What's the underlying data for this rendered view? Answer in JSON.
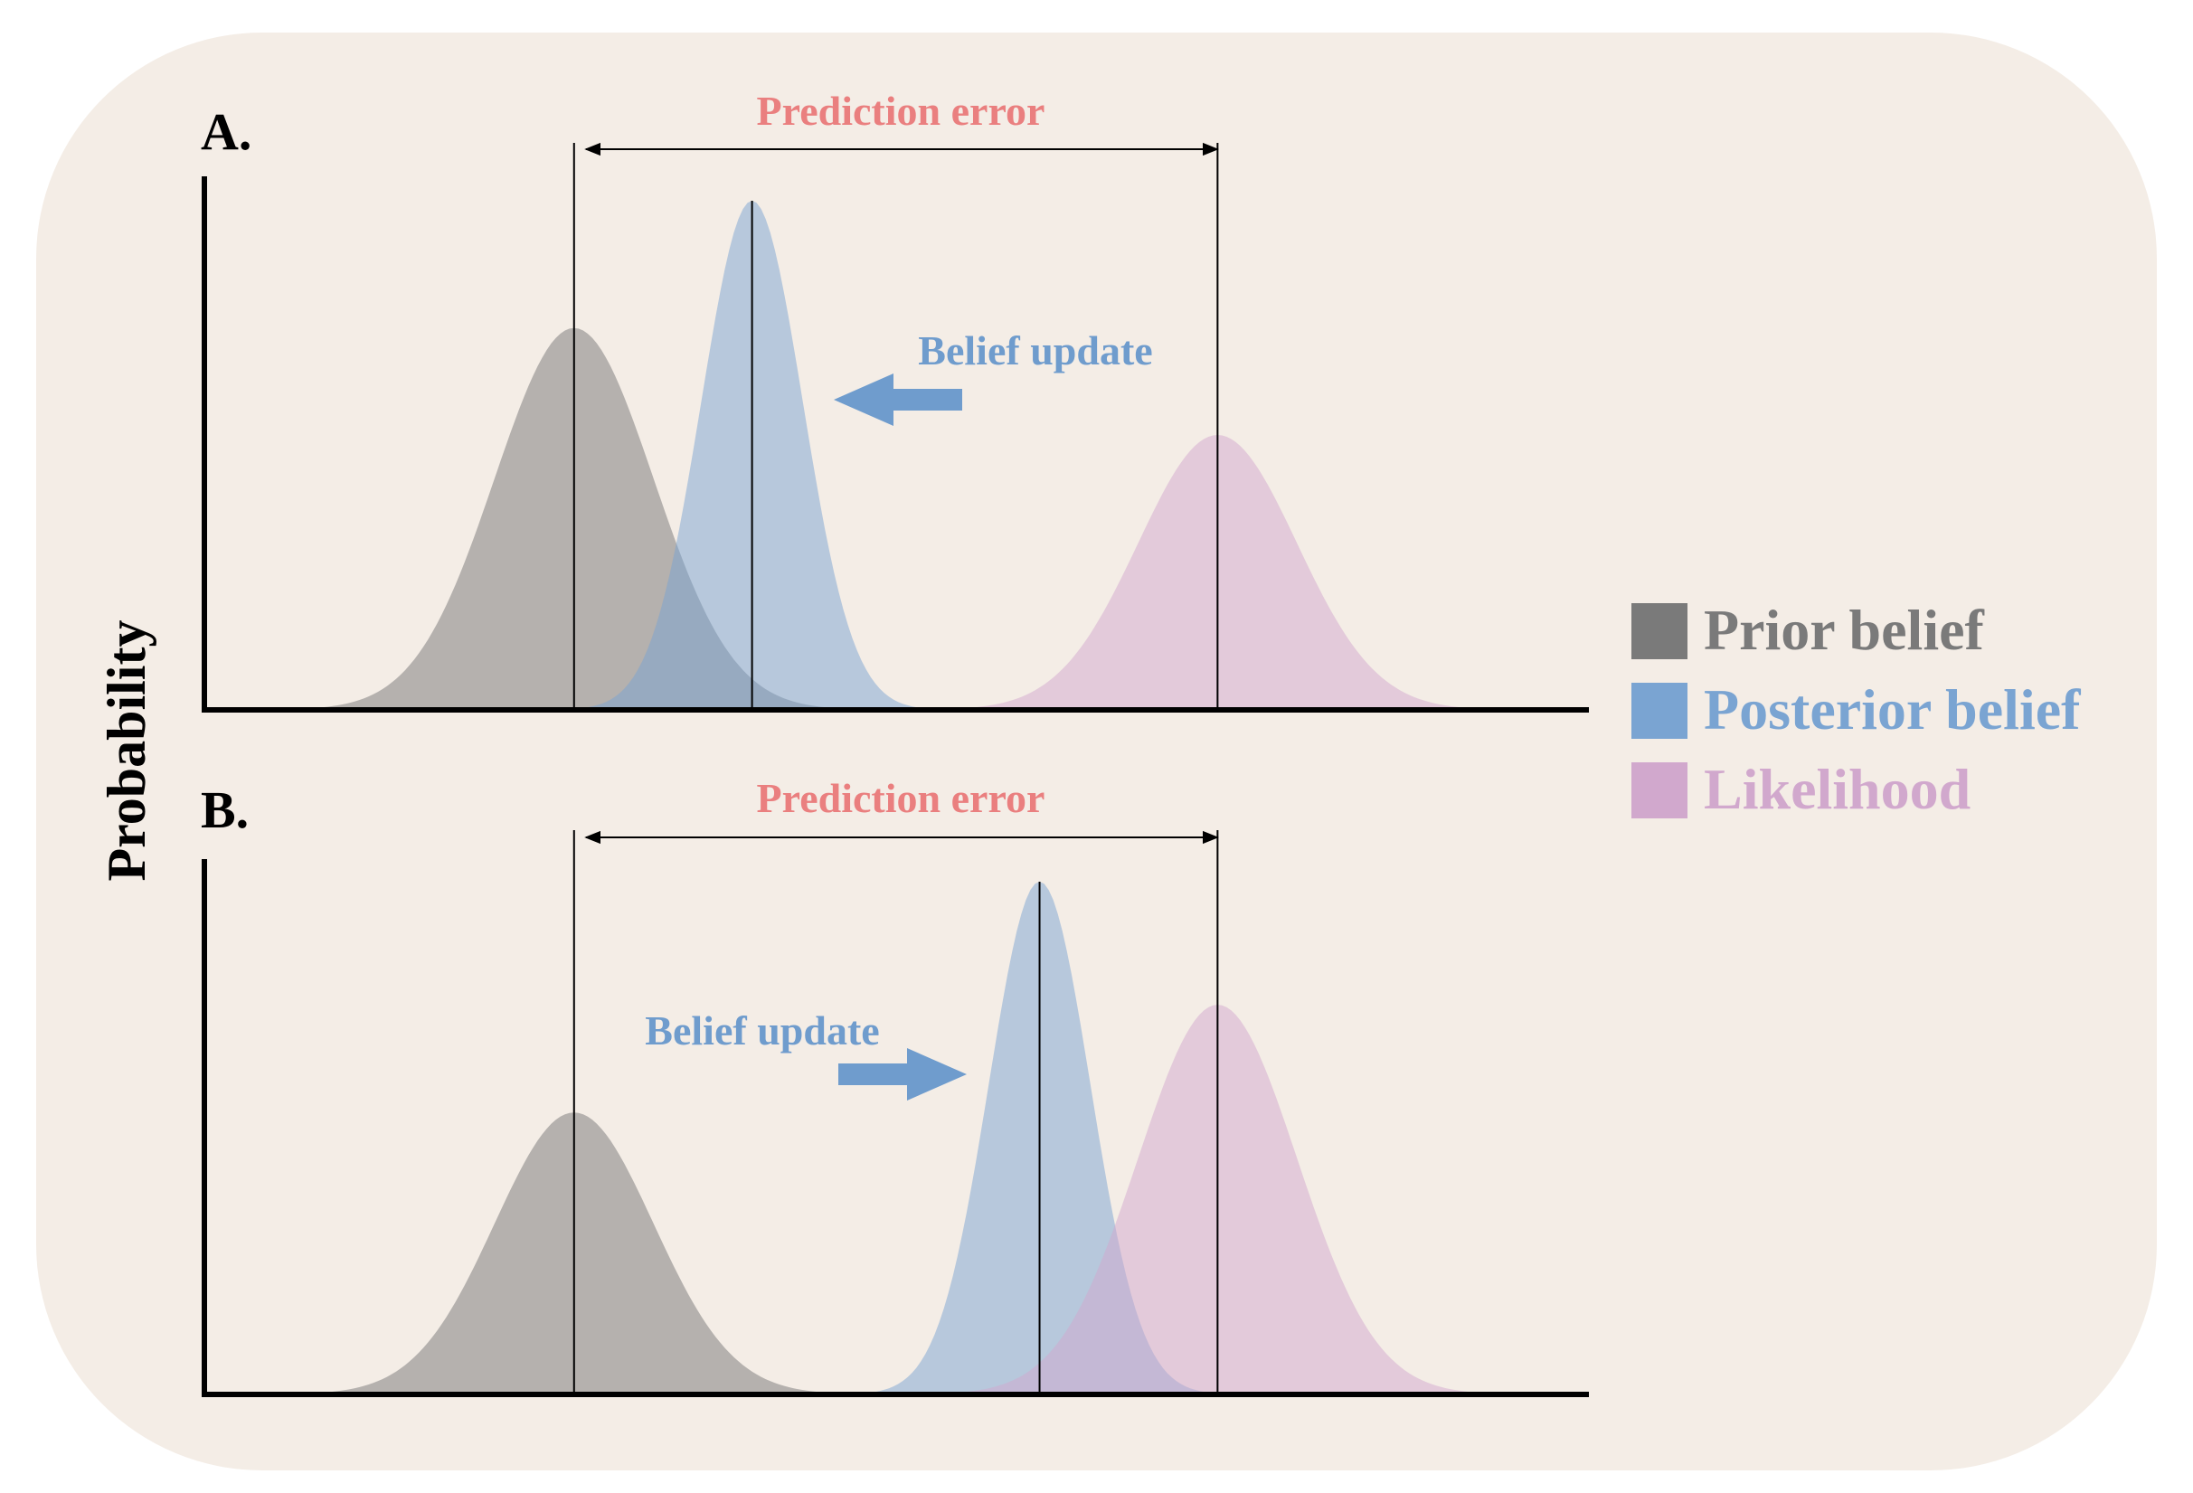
{
  "colors": {
    "background": "#f4ede6",
    "prior": "#7a7a7a",
    "posterior": "#7aa4d2",
    "likelihood": "#d1a8cd",
    "prediction_error": "#ea7f7f",
    "belief_update": "#6f9ccd",
    "axis": "#000000"
  },
  "y_axis_label": "Probability",
  "panels": [
    {
      "label": "A.",
      "prediction_error_label": "Prediction error",
      "belief_update_label": "Belief update",
      "update_direction": "left",
      "prior": {
        "mean": 0.27,
        "sd": 0.058,
        "peak": 0.75
      },
      "posterior": {
        "mean": 0.4,
        "sd": 0.037,
        "peak": 1.0
      },
      "likelihood": {
        "mean": 0.74,
        "sd": 0.058,
        "peak": 0.54
      }
    },
    {
      "label": "B.",
      "prediction_error_label": "Prediction error",
      "belief_update_label": "Belief update",
      "update_direction": "right",
      "prior": {
        "mean": 0.27,
        "sd": 0.058,
        "peak": 0.55
      },
      "posterior": {
        "mean": 0.61,
        "sd": 0.037,
        "peak": 1.0
      },
      "likelihood": {
        "mean": 0.74,
        "sd": 0.058,
        "peak": 0.76
      }
    }
  ],
  "legend": [
    {
      "key": "prior",
      "label": "Prior belief"
    },
    {
      "key": "posterior",
      "label": "Posterior belief"
    },
    {
      "key": "likelihood",
      "label": "Likelihood"
    }
  ]
}
